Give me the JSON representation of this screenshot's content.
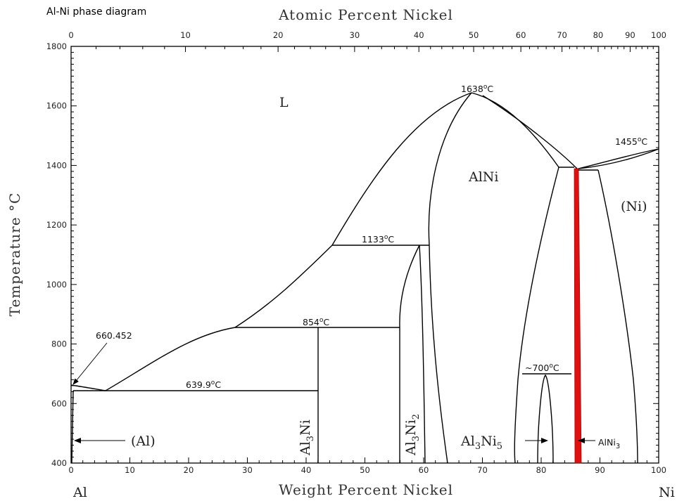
{
  "title": "Al-Ni phase diagram",
  "axes": {
    "top_title": "Atomic Percent Nickel",
    "bottom_title": "Weight Percent Nickel",
    "left_title": "Temperature °C",
    "left_end_label": "Al",
    "right_end_label": "Ni",
    "y_range": [
      400,
      1800
    ],
    "y_ticks": [
      400,
      600,
      800,
      1000,
      1200,
      1400,
      1600,
      1800
    ],
    "wt_ticks": [
      0,
      10,
      20,
      30,
      40,
      50,
      60,
      70,
      80,
      90,
      100
    ],
    "at_ticks": [
      0,
      10,
      20,
      30,
      40,
      50,
      60,
      70,
      80,
      90,
      100
    ]
  },
  "phases": {
    "liquid": "L",
    "alni": "AlNi",
    "ni": "(Ni)",
    "al": "(Al)",
    "al3ni": {
      "base": "Al",
      "sub1": "3",
      "mid": "Ni",
      "sub2": ""
    },
    "al3ni2": {
      "base": "Al",
      "sub1": "3",
      "mid": "Ni",
      "sub2": "2"
    },
    "al3ni5": {
      "base": "Al",
      "sub1": "3",
      "mid": "Ni",
      "sub2": "5"
    },
    "alni3": {
      "base": "AlNi",
      "sub1": "3"
    }
  },
  "annotations": {
    "t1638": {
      "num": "1638",
      "sup": "o",
      "unit": "C"
    },
    "t1455": {
      "num": "1455",
      "sup": "o",
      "unit": "C"
    },
    "t1133": {
      "num": "1133",
      "sup": "o",
      "unit": "C"
    },
    "t854": {
      "num": "854",
      "sup": "o",
      "unit": "C"
    },
    "t639": {
      "num": "639.9",
      "sup": "o",
      "unit": "C"
    },
    "t700": {
      "num": "~700",
      "sup": "o",
      "unit": "C"
    },
    "t660": "660.452"
  },
  "colors": {
    "highlight": "#e01010",
    "line": "#000000"
  }
}
